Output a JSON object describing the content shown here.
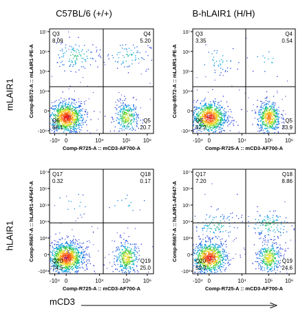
{
  "header": {
    "col1": "C57BL/6 (+/+)",
    "col2": "B-hLAIR1 (H/H)"
  },
  "rows": {
    "row1": "mLAIR1",
    "row2": "hLAIR1"
  },
  "footer": {
    "axis_label": "mCD3"
  },
  "chart_data": [
    {
      "type": "scatter",
      "title": "C57BL/6 (+/+)",
      "xlabel": "Comp-R725-A :: mCD3-AF700-A",
      "ylabel": "Comp-B572-A :: mLAIR1-PE-A",
      "x_ticks": [
        "-10⁴",
        "0",
        "10⁴",
        "10⁵",
        "10⁶"
      ],
      "y_ticks": [
        "10⁷",
        "10⁶",
        "10⁵",
        "10⁴",
        "0",
        "-10⁴"
      ],
      "quadrants": [
        {
          "name": "Q3",
          "value": "8.09"
        },
        {
          "name": "Q4",
          "value": "5.20"
        },
        {
          "name": "Q6",
          "value": "66.1"
        },
        {
          "name": "Q5",
          "value": "20.7"
        }
      ],
      "populations": [
        {
          "x": 0.0,
          "y": 0.0,
          "share": 0.66
        },
        {
          "x": 2.9,
          "y": 0.0,
          "share": 0.21
        },
        {
          "x": 0.4,
          "y": 3.0,
          "share": 0.08
        },
        {
          "x": 2.9,
          "y": 3.0,
          "share": 0.05
        }
      ]
    },
    {
      "type": "scatter",
      "title": "B-hLAIR1 (H/H)",
      "xlabel": "Comp-R725-A :: mCD3-AF700-A",
      "ylabel": "Comp-B572-A :: mLAIR1-PE-A",
      "x_ticks": [
        "-10⁴",
        "0",
        "10⁴",
        "10⁵",
        "10⁶"
      ],
      "y_ticks": [
        "10⁷",
        "10⁶",
        "10⁵",
        "10⁴",
        "0",
        "-10⁴"
      ],
      "quadrants": [
        {
          "name": "Q3",
          "value": "3.35"
        },
        {
          "name": "Q4",
          "value": "0.54"
        },
        {
          "name": "Q6",
          "value": "62.2"
        },
        {
          "name": "Q5",
          "value": "33.9"
        }
      ],
      "populations": [
        {
          "x": 0.0,
          "y": 0.0,
          "share": 0.62
        },
        {
          "x": 2.9,
          "y": 0.0,
          "share": 0.34
        },
        {
          "x": 0.4,
          "y": 2.8,
          "share": 0.03
        },
        {
          "x": 2.9,
          "y": 2.8,
          "share": 0.01
        }
      ]
    },
    {
      "type": "scatter",
      "title": "C57BL/6 (+/+)",
      "xlabel": "Comp-R725-A :: mCD3-AF700-A",
      "ylabel": "Comp-R667-A :: hLAIR1-AF647-A",
      "x_ticks": [
        "-10⁴",
        "0",
        "10⁴",
        "10⁵",
        "10⁶"
      ],
      "y_ticks": [
        "10⁷",
        "10⁶",
        "10⁵",
        "10⁴",
        "10³",
        "0",
        "-10³"
      ],
      "quadrants": [
        {
          "name": "Q17",
          "value": "0.32"
        },
        {
          "name": "Q18",
          "value": "0.17"
        },
        {
          "name": "Q20",
          "value": "74.5"
        },
        {
          "name": "Q19",
          "value": "25.0"
        }
      ],
      "populations": [
        {
          "x": 0.0,
          "y": 0.0,
          "share": 0.745
        },
        {
          "x": 2.9,
          "y": 0.0,
          "share": 0.25
        },
        {
          "x": 0.4,
          "y": 2.6,
          "share": 0.003
        },
        {
          "x": 2.9,
          "y": 2.6,
          "share": 0.002
        }
      ]
    },
    {
      "type": "scatter",
      "title": "B-hLAIR1 (H/H)",
      "xlabel": "Comp-R725-A :: mCD3-AF700-A",
      "ylabel": "Comp-R667-A :: hLAIR1-AF647-A",
      "x_ticks": [
        "-10⁴",
        "0",
        "10⁴",
        "10⁵",
        "10⁶"
      ],
      "y_ticks": [
        "10⁷",
        "10⁶",
        "10⁵",
        "10⁴",
        "10³",
        "0",
        "-10³"
      ],
      "quadrants": [
        {
          "name": "Q17",
          "value": "7.20"
        },
        {
          "name": "Q18",
          "value": "8.86"
        },
        {
          "name": "Q20",
          "value": "59.3"
        },
        {
          "name": "Q19",
          "value": "24.6"
        }
      ],
      "populations": [
        {
          "x": 0.0,
          "y": 0.0,
          "share": 0.593
        },
        {
          "x": 2.9,
          "y": 0.0,
          "share": 0.246
        },
        {
          "x": 0.3,
          "y": 1.6,
          "share": 0.072
        },
        {
          "x": 2.9,
          "y": 1.6,
          "share": 0.089
        }
      ]
    }
  ]
}
